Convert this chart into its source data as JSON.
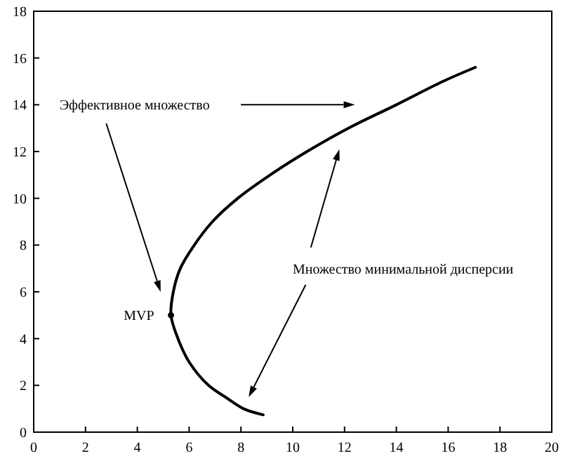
{
  "chart_data": {
    "type": "line",
    "xlim": [
      0,
      20
    ],
    "ylim": [
      0,
      18
    ],
    "xticks": [
      0,
      2,
      4,
      6,
      8,
      10,
      12,
      14,
      16,
      18,
      20
    ],
    "yticks": [
      0,
      2,
      4,
      6,
      8,
      10,
      12,
      14,
      16,
      18
    ],
    "grid": false,
    "series": [
      {
        "color": "#000000",
        "marker": "none",
        "x": [
          8.86,
          8.1,
          7.4,
          6.75,
          6.0,
          5.57,
          5.3,
          5.39,
          5.66,
          6.2,
          6.9,
          7.88,
          9.13,
          10.55,
          12.15,
          14.0,
          15.8,
          17.05
        ],
        "values": [
          0.74,
          1,
          1.5,
          2,
          3,
          4,
          5,
          6,
          7,
          8,
          9,
          10,
          11,
          12,
          13,
          14,
          15,
          15.6
        ]
      },
      {
        "type": "scatter",
        "color": "#000000",
        "marker": "circle",
        "x": [
          5.3
        ],
        "values": [
          5
        ]
      }
    ],
    "annotations": [
      {
        "text": "MVP",
        "x": 5.3,
        "y": 5
      },
      "Эффективное множество",
      "Множество минимальной дисперсии"
    ]
  }
}
